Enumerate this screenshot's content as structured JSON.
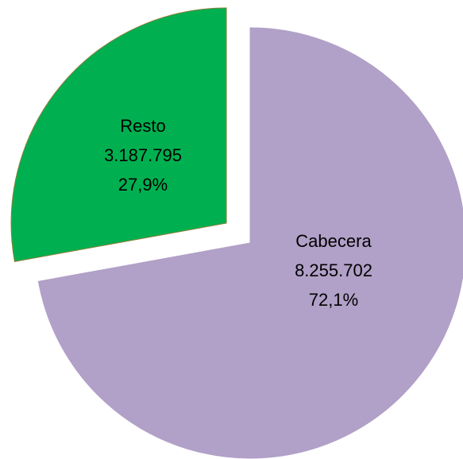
{
  "chart_data": {
    "type": "pie",
    "categories": [
      "Cabecera",
      "Resto"
    ],
    "values": [
      8255702,
      3187795
    ],
    "value_labels": [
      "8.255.702",
      "3.187.795"
    ],
    "percentages": [
      72.1,
      27.9
    ],
    "percentage_labels": [
      "72,1%",
      "27,9%"
    ],
    "colors": [
      "#b1a0c7",
      "#00b050"
    ],
    "exploded": [
      false,
      true
    ]
  }
}
